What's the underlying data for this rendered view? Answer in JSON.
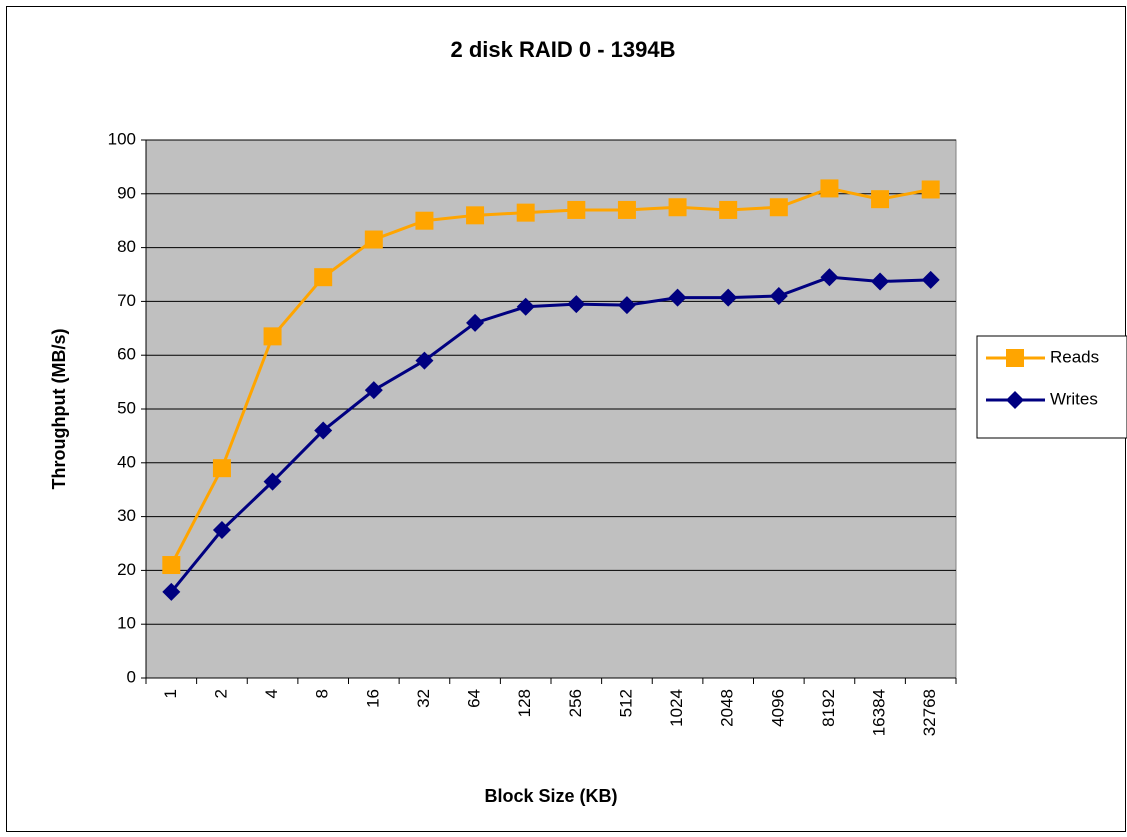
{
  "chart_data": {
    "type": "line",
    "title": "2 disk RAID 0 - 1394B",
    "x_label": "Block Size (KB)",
    "y_label": "Throughput (MB/s)",
    "categories": [
      "1",
      "2",
      "4",
      "8",
      "16",
      "32",
      "64",
      "128",
      "256",
      "512",
      "1024",
      "2048",
      "4096",
      "8192",
      "16384",
      "32768"
    ],
    "series": [
      {
        "name": "Reads",
        "color": "#FFA500",
        "marker": "square",
        "values": [
          21,
          39,
          63.5,
          74.5,
          81.5,
          85,
          86,
          86.5,
          87,
          87,
          87.5,
          87,
          87.5,
          91,
          89,
          90.8
        ]
      },
      {
        "name": "Writes",
        "color": "#000080",
        "marker": "diamond",
        "values": [
          16,
          27.5,
          36.5,
          46,
          53.5,
          59,
          66,
          69,
          69.5,
          69.3,
          70.7,
          70.7,
          71,
          74.5,
          73.7,
          74
        ]
      }
    ],
    "ylim": [
      0,
      100
    ],
    "yticks": [
      0,
      10,
      20,
      30,
      40,
      50,
      60,
      70,
      80,
      90,
      100
    ],
    "grid": true,
    "legend": "right"
  }
}
